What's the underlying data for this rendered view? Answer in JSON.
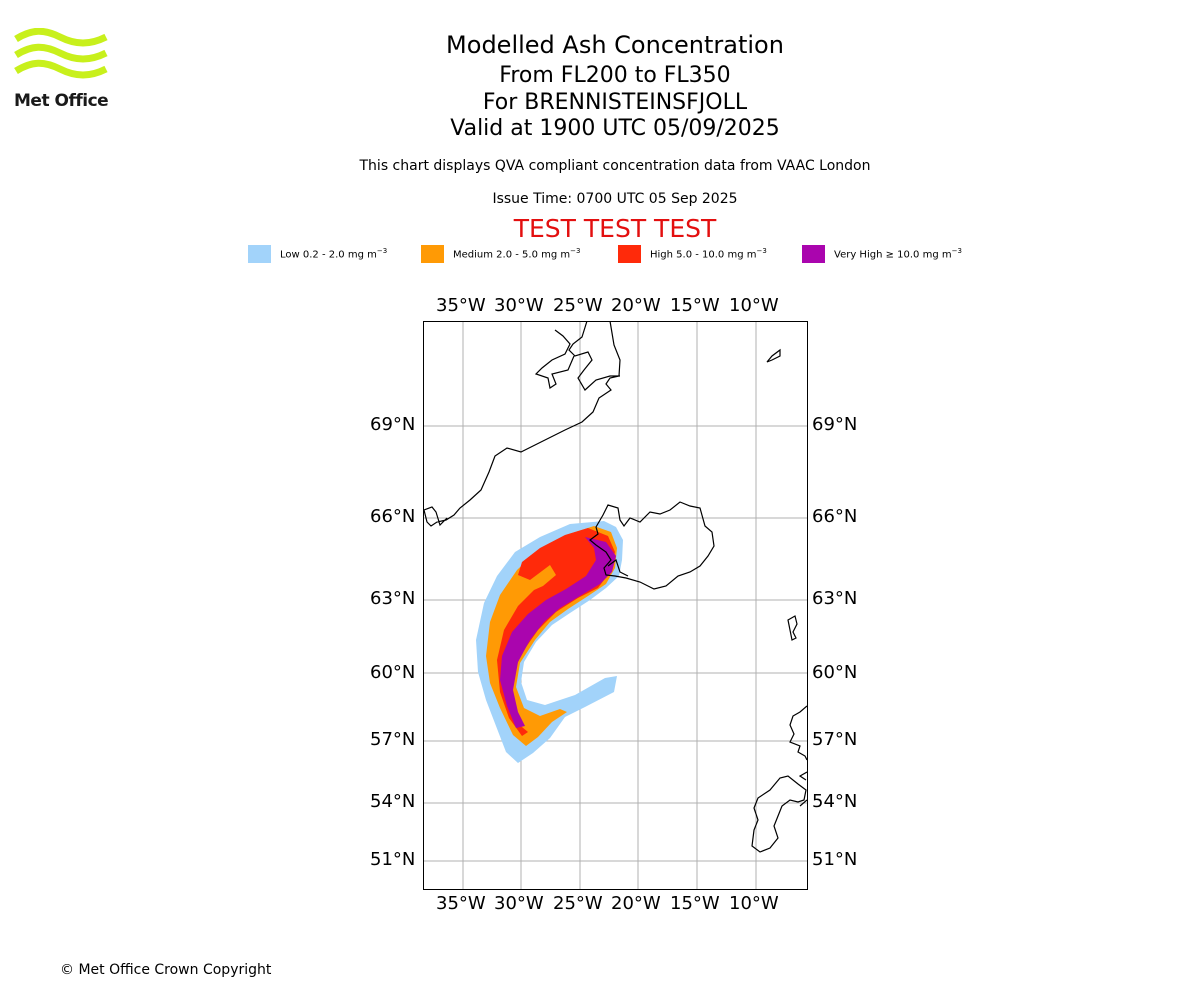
{
  "logo": {
    "brand_text": "Met Office",
    "colors": {
      "waves": "#c8f01c",
      "text": "#1a1a1a"
    }
  },
  "header": {
    "title": "Modelled Ash Concentration",
    "levels": "From FL200 to FL350",
    "volcano": "For BRENNISTEINSFJOLL",
    "valid": "Valid at 1900 UTC 05/09/2025",
    "compliance": "This chart displays QVA compliant concentration data from VAAC London",
    "issue_time": "Issue Time: 0700 UTC 05 Sep 2025",
    "test_banner": "TEST TEST TEST",
    "test_banner_color": "#e30f0f"
  },
  "legend": [
    {
      "label": "Low 0.2 - 2.0 mg m",
      "unit_exp": "−3",
      "color": "#a2d3fa"
    },
    {
      "label": "Medium 2.0 - 5.0 mg m",
      "unit_exp": "−3",
      "color": "#ff9a05"
    },
    {
      "label": "High 5.0 - 10.0 mg m",
      "unit_exp": "−3",
      "color": "#ff2a0a"
    },
    {
      "label": "Very High  ≥  10.0 mg m",
      "unit_exp": "−3",
      "color": "#aa05ae"
    }
  ],
  "map": {
    "lon_ticks": [
      "35°W",
      "30°W",
      "25°W",
      "20°W",
      "15°W",
      "10°W"
    ],
    "lat_ticks": [
      "69°N",
      "66°N",
      "63°N",
      "60°N",
      "57°N",
      "54°N",
      "51°N"
    ],
    "grid_color": "#b0b0b0",
    "coast_color": "#000000"
  },
  "footer": {
    "copyright": "© Met Office Crown Copyright"
  }
}
